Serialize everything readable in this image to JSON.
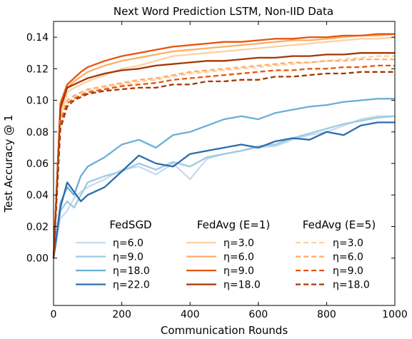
{
  "chart_data": {
    "type": "line",
    "title": "Next Word Prediction LSTM, Non-IID Data",
    "xlabel": "Communication Rounds",
    "ylabel": "Test Accuracy @ 1",
    "xlim": [
      0,
      1000
    ],
    "ylim": [
      -0.03,
      0.15
    ],
    "xticks": [
      0,
      200,
      400,
      600,
      800,
      1000
    ],
    "yticks": [
      0.0,
      0.02,
      0.04,
      0.06,
      0.08,
      0.1,
      0.12,
      0.14
    ],
    "ytick_labels": [
      "0.00",
      "0.02",
      "0.04",
      "0.06",
      "0.08",
      "0.10",
      "0.12",
      "0.14"
    ],
    "grid": false,
    "legend_position": "lower-center",
    "legend_groups": [
      {
        "title": "FedSGD",
        "entries": [
          {
            "label": "η=6.0",
            "series": 0
          },
          {
            "label": "η=9.0",
            "series": 1
          },
          {
            "label": "η=18.0",
            "series": 2
          },
          {
            "label": "η=22.0",
            "series": 3
          }
        ]
      },
      {
        "title": "FedAvg (E=1)",
        "entries": [
          {
            "label": "η=3.0",
            "series": 4
          },
          {
            "label": "η=6.0",
            "series": 5
          },
          {
            "label": "η=9.0",
            "series": 6
          },
          {
            "label": "η=18.0",
            "series": 7
          }
        ]
      },
      {
        "title": "FedAvg (E=5)",
        "entries": [
          {
            "label": "η=3.0",
            "series": 8
          },
          {
            "label": "η=6.0",
            "series": 9
          },
          {
            "label": "η=9.0",
            "series": 10
          },
          {
            "label": "η=18.0",
            "series": 11
          }
        ]
      }
    ],
    "x": [
      0,
      20,
      40,
      60,
      80,
      100,
      150,
      200,
      250,
      300,
      350,
      400,
      450,
      500,
      550,
      600,
      650,
      700,
      750,
      800,
      850,
      900,
      950,
      1000
    ],
    "series": [
      {
        "color": "#c6dbef",
        "dash": false,
        "values": [
          0.0,
          0.025,
          0.03,
          0.038,
          0.042,
          0.045,
          0.05,
          0.056,
          0.058,
          0.053,
          0.06,
          0.05,
          0.063,
          0.066,
          0.068,
          0.07,
          0.071,
          0.075,
          0.078,
          0.08,
          0.084,
          0.088,
          0.09,
          0.09
        ]
      },
      {
        "color": "#9ecae1",
        "dash": false,
        "values": [
          0.0,
          0.03,
          0.036,
          0.032,
          0.04,
          0.048,
          0.052,
          0.055,
          0.06,
          0.056,
          0.061,
          0.058,
          0.064,
          0.066,
          0.068,
          0.071,
          0.072,
          0.076,
          0.079,
          0.082,
          0.085,
          0.087,
          0.089,
          0.09
        ]
      },
      {
        "color": "#6baed6",
        "dash": false,
        "values": [
          0.0,
          0.035,
          0.045,
          0.04,
          0.052,
          0.058,
          0.064,
          0.072,
          0.075,
          0.07,
          0.078,
          0.08,
          0.084,
          0.088,
          0.09,
          0.088,
          0.092,
          0.094,
          0.096,
          0.097,
          0.099,
          0.1,
          0.101,
          0.101
        ]
      },
      {
        "color": "#2b6cb0",
        "dash": false,
        "values": [
          0.0,
          0.032,
          0.048,
          0.042,
          0.036,
          0.04,
          0.045,
          0.055,
          0.065,
          0.06,
          0.058,
          0.066,
          0.068,
          0.07,
          0.072,
          0.07,
          0.074,
          0.076,
          0.075,
          0.08,
          0.078,
          0.084,
          0.086,
          0.086
        ]
      },
      {
        "color": "#fdd0a2",
        "dash": false,
        "values": [
          0.0,
          0.09,
          0.105,
          0.108,
          0.11,
          0.112,
          0.116,
          0.12,
          0.122,
          0.125,
          0.128,
          0.129,
          0.13,
          0.131,
          0.132,
          0.133,
          0.134,
          0.135,
          0.136,
          0.137,
          0.138,
          0.139,
          0.139,
          0.14
        ]
      },
      {
        "color": "#fdae6b",
        "dash": false,
        "values": [
          0.0,
          0.094,
          0.108,
          0.112,
          0.115,
          0.118,
          0.122,
          0.125,
          0.127,
          0.129,
          0.131,
          0.132,
          0.133,
          0.134,
          0.135,
          0.136,
          0.137,
          0.138,
          0.138,
          0.139,
          0.14,
          0.141,
          0.141,
          0.142
        ]
      },
      {
        "color": "#e6550d",
        "dash": false,
        "values": [
          0.0,
          0.098,
          0.11,
          0.114,
          0.118,
          0.121,
          0.125,
          0.128,
          0.13,
          0.132,
          0.134,
          0.135,
          0.136,
          0.137,
          0.137,
          0.138,
          0.139,
          0.139,
          0.14,
          0.14,
          0.141,
          0.141,
          0.142,
          0.142
        ]
      },
      {
        "color": "#a63603",
        "dash": false,
        "values": [
          0.0,
          0.095,
          0.108,
          0.11,
          0.112,
          0.114,
          0.117,
          0.119,
          0.12,
          0.122,
          0.123,
          0.124,
          0.125,
          0.125,
          0.126,
          0.127,
          0.127,
          0.128,
          0.128,
          0.129,
          0.129,
          0.13,
          0.13,
          0.13
        ]
      },
      {
        "color": "#fdd0a2",
        "dash": true,
        "values": [
          0.0,
          0.085,
          0.098,
          0.102,
          0.104,
          0.106,
          0.108,
          0.11,
          0.112,
          0.113,
          0.115,
          0.117,
          0.118,
          0.119,
          0.12,
          0.121,
          0.122,
          0.123,
          0.124,
          0.125,
          0.126,
          0.127,
          0.128,
          0.128
        ]
      },
      {
        "color": "#fdae6b",
        "dash": true,
        "values": [
          0.0,
          0.088,
          0.1,
          0.103,
          0.105,
          0.107,
          0.109,
          0.111,
          0.113,
          0.114,
          0.116,
          0.118,
          0.119,
          0.12,
          0.121,
          0.122,
          0.123,
          0.124,
          0.124,
          0.125,
          0.125,
          0.126,
          0.126,
          0.126
        ]
      },
      {
        "color": "#e6550d",
        "dash": true,
        "values": [
          0.0,
          0.086,
          0.098,
          0.101,
          0.103,
          0.105,
          0.107,
          0.109,
          0.11,
          0.111,
          0.113,
          0.114,
          0.115,
          0.116,
          0.117,
          0.118,
          0.119,
          0.119,
          0.12,
          0.12,
          0.121,
          0.121,
          0.122,
          0.122
        ]
      },
      {
        "color": "#a63603",
        "dash": true,
        "values": [
          0.0,
          0.082,
          0.096,
          0.1,
          0.102,
          0.104,
          0.106,
          0.107,
          0.108,
          0.108,
          0.11,
          0.11,
          0.112,
          0.112,
          0.113,
          0.113,
          0.115,
          0.115,
          0.116,
          0.117,
          0.117,
          0.118,
          0.118,
          0.118
        ]
      }
    ]
  }
}
